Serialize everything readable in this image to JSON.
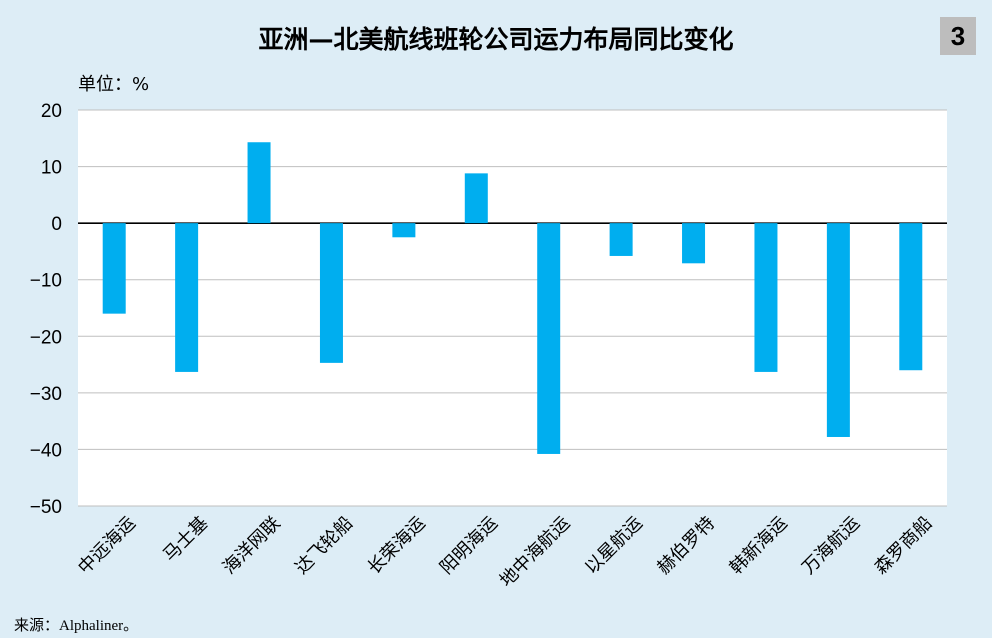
{
  "header": {
    "title": "亚洲—北美航线班轮公司运力布局同比变化",
    "badge": "3"
  },
  "unit_label": "单位：%",
  "source": "来源：Alphaliner。",
  "chart_data": {
    "type": "bar",
    "title": "亚洲—北美航线班轮公司运力布局同比变化",
    "categories": [
      "中远海运",
      "马士基",
      "海洋网联",
      "达飞轮船",
      "长荣海运",
      "阳明海运",
      "地中海航运",
      "以星航运",
      "赫伯罗特",
      "韩新海运",
      "万海航运",
      "森罗商船"
    ],
    "values": [
      -16,
      -26.3,
      14.3,
      -24.7,
      -2.5,
      8.8,
      -40.8,
      -5.8,
      -7.1,
      -26.3,
      -37.8,
      -26
    ],
    "ylim": [
      -50,
      20
    ],
    "yticks": [
      20,
      10,
      0,
      -10,
      -20,
      -30,
      -40,
      -50
    ],
    "ytick_labels": [
      "20",
      "10",
      "0",
      "−10",
      "−20",
      "−30",
      "−40",
      "−50"
    ],
    "ylabel": "单位：%",
    "xlabel": "",
    "bar_color": "#00aeef",
    "grid": true
  }
}
